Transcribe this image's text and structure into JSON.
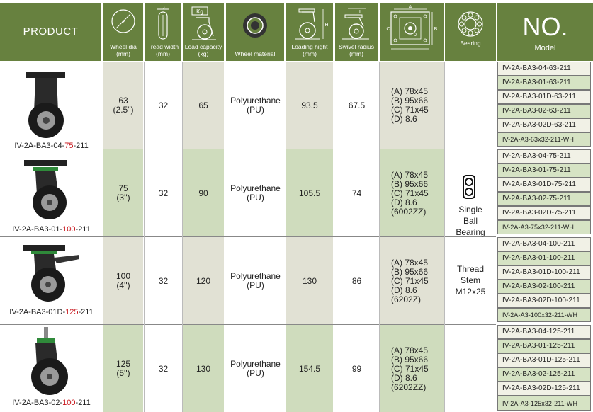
{
  "header": {
    "product": "PRODUCT",
    "wheel_dia": "Wheel dia (mm)",
    "tread_width": "Tread width (mm)",
    "load_capacity": "Load capacity (kg)",
    "wheel_material": "Wheel material",
    "loading_height": "Loading hight (mm)",
    "swivel_radius": "Swivel radius (mm)",
    "bearing": "Bearing",
    "no_big": "NO.",
    "no_small": "Model",
    "icon_letters": {
      "d": "D",
      "kg": "Kg",
      "h": "H",
      "l": "L",
      "a": "A",
      "b": "B",
      "c": "C",
      "dd": "D"
    }
  },
  "rows": [
    {
      "product_prefix": "IV-2A-BA3-04-",
      "product_red": "75",
      "product_suffix": "-211",
      "dia": "63",
      "dia_inch": "(2.5\")",
      "tread": "32",
      "load": "65",
      "material": "Polyurethane",
      "material_code": "(PU)",
      "height": "93.5",
      "swivel": "67.5",
      "spec": [
        "(A) 78x45",
        "(B) 95x66",
        "(C) 71x45",
        "(D) 8.6"
      ],
      "models": [
        "IV-2A-BA3-04-63-211",
        "IV-2A-BA3-01-63-211",
        "IV-2A-BA3-01D-63-211",
        "IV-2A-BA3-02-63-211",
        "IV-2A-BA3-02D-63-211",
        "IV-2A-A3-63x32-211-WH"
      ]
    },
    {
      "product_prefix": "IV-2A-BA3-01-",
      "product_red": "100",
      "product_suffix": "-211",
      "dia": "75",
      "dia_inch": "(3'')",
      "tread": "32",
      "load": "90",
      "material": "Polyurethane",
      "material_code": "(PU)",
      "height": "105.5",
      "swivel": "74",
      "spec": [
        "(A) 78x45",
        "(B) 95x66",
        "(C) 71x45",
        "(D) 8.6",
        "(6002ZZ)"
      ],
      "models": [
        "IV-2A-BA3-04-75-211",
        "IV-2A-BA3-01-75-211",
        "IV-2A-BA3-01D-75-211",
        "IV-2A-BA3-02-75-211",
        "IV-2A-BA3-02D-75-211",
        "IV-2A-A3-75x32-211-WH"
      ]
    },
    {
      "product_prefix": "IV-2A-BA3-01D-",
      "product_red": "125",
      "product_suffix": "-211",
      "dia": "100",
      "dia_inch": "(4'')",
      "tread": "32",
      "load": "120",
      "material": "Polyurethane",
      "material_code": "(PU)",
      "height": "130",
      "swivel": "86",
      "spec": [
        "(A) 78x45",
        "(B) 95x66",
        "(C) 71x45",
        "(D) 8.6",
        "(6202Z)"
      ],
      "models": [
        "IV-2A-BA3-04-100-211",
        "IV-2A-BA3-01-100-211",
        "IV-2A-BA3-01D-100-211",
        "IV-2A-BA3-02-100-211",
        "IV-2A-BA3-02D-100-211",
        "IV-2A-A3-100x32-211-WH"
      ]
    },
    {
      "product_prefix": "IV-2A-BA3-02-",
      "product_red": "100",
      "product_suffix": "-211",
      "dia": "125",
      "dia_inch": "(5'')",
      "tread": "32",
      "load": "130",
      "material": "Polyurethane",
      "material_code": "(PU)",
      "height": "154.5",
      "swivel": "99",
      "spec": [
        "(A) 78x45",
        "(B) 95x66",
        "(C) 71x45",
        "(D) 8.6",
        "(6202ZZ)"
      ],
      "models": [
        "IV-2A-BA3-04-125-211",
        "IV-2A-BA3-01-125-211",
        "IV-2A-BA3-01D-125-211",
        "IV-2A-BA3-02-125-211",
        "IV-2A-BA3-02D-125-211",
        "IV-2A-A3-125x32-211-WH"
      ]
    }
  ],
  "bearing": {
    "type": [
      "Single",
      "Ball",
      "Bearing"
    ],
    "thread": [
      "Thread",
      "Stem",
      "M12x25"
    ]
  },
  "colors": {
    "header_green": "#67813f",
    "tint_gray": "#e1e1d4",
    "tint_green": "#cfdcbd",
    "red_text": "#c8151b"
  }
}
